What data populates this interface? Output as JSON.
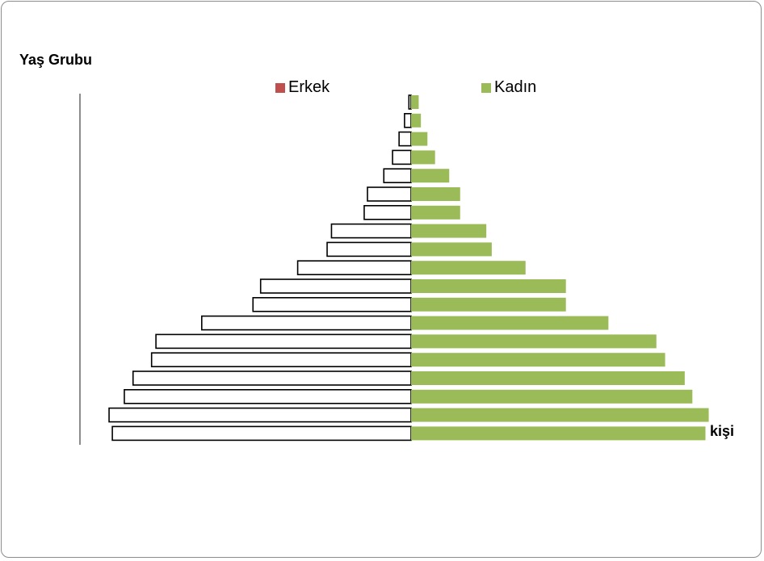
{
  "chart_data": {
    "type": "bar",
    "orientation": "horizontal",
    "ylabel": "Yaş Grubu",
    "xlabel": "kişi",
    "legend_position": "top",
    "series": [
      {
        "name": "Erkek",
        "color": "#c0504d",
        "values": [
          2,
          6,
          11,
          17,
          25,
          40,
          43,
          73,
          77,
          104,
          138,
          145,
          192,
          234,
          238,
          255,
          263,
          277,
          274
        ]
      },
      {
        "name": "Kadın",
        "color": "#9bbb59",
        "values": [
          7,
          9,
          15,
          22,
          35,
          45,
          45,
          69,
          74,
          105,
          142,
          142,
          181,
          225,
          233,
          251,
          258,
          273,
          270
        ]
      }
    ]
  }
}
